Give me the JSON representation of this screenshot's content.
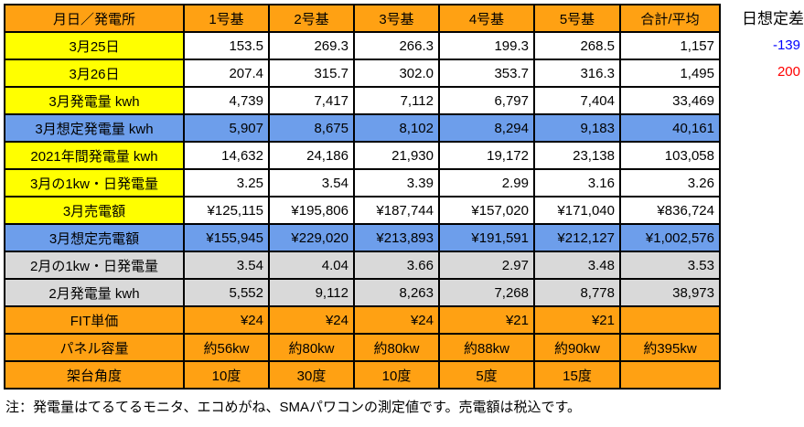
{
  "colors": {
    "orange": "#FFA113",
    "yellow": "#FFFF00",
    "blue": "#6D9EEB",
    "gray": "#D9D9D9",
    "white": "#FFFFFF",
    "border": "#000000",
    "negative": "#0000FF",
    "positive": "#FF0000"
  },
  "table": {
    "columns": [
      "月日／発電所",
      "1号基",
      "2号基",
      "3号基",
      "4号基",
      "5号基",
      "合計/平均"
    ],
    "rows": [
      {
        "label": "3月25日",
        "type": "yellow",
        "align": "right",
        "values": [
          "153.5",
          "269.3",
          "266.3",
          "199.3",
          "268.5",
          "1,157"
        ]
      },
      {
        "label": "3月26日",
        "type": "yellow",
        "align": "right",
        "values": [
          "207.4",
          "315.7",
          "302.0",
          "353.7",
          "316.3",
          "1,495"
        ]
      },
      {
        "label": "3月発電量 kwh",
        "type": "yellow",
        "align": "right",
        "values": [
          "4,739",
          "7,417",
          "7,112",
          "6,797",
          "7,404",
          "33,469"
        ]
      },
      {
        "label": "3月想定発電量 kwh",
        "type": "blue",
        "align": "right",
        "values": [
          "5,907",
          "8,675",
          "8,102",
          "8,294",
          "9,183",
          "40,161"
        ]
      },
      {
        "label": "2021年間発電量 kwh",
        "type": "yellow",
        "align": "right",
        "values": [
          "14,632",
          "24,186",
          "21,930",
          "19,172",
          "23,138",
          "103,058"
        ]
      },
      {
        "label": "3月の1kw・日発電量",
        "type": "yellow",
        "align": "right",
        "values": [
          "3.25",
          "3.54",
          "3.39",
          "2.99",
          "3.16",
          "3.26"
        ]
      },
      {
        "label": "3月売電額",
        "type": "yellow",
        "align": "right",
        "values": [
          "¥125,115",
          "¥195,806",
          "¥187,744",
          "¥157,020",
          "¥171,040",
          "¥836,724"
        ]
      },
      {
        "label": "3月想定売電額",
        "type": "blue",
        "align": "right",
        "values": [
          "¥155,945",
          "¥229,020",
          "¥213,893",
          "¥191,591",
          "¥212,127",
          "¥1,002,576"
        ]
      },
      {
        "label": "2月の1kw・日発電量",
        "type": "gray",
        "align": "right",
        "values": [
          "3.54",
          "4.04",
          "3.66",
          "2.97",
          "3.48",
          "3.53"
        ]
      },
      {
        "label": "2月発電量 kwh",
        "type": "gray",
        "align": "right",
        "values": [
          "5,552",
          "9,112",
          "8,263",
          "7,268",
          "8,778",
          "38,973"
        ]
      },
      {
        "label": "FIT単価",
        "type": "orange",
        "align": "right",
        "values": [
          "¥24",
          "¥24",
          "¥24",
          "¥21",
          "¥21",
          ""
        ]
      },
      {
        "label": "パネル容量",
        "type": "orange",
        "align": "center",
        "values": [
          "約56kw",
          "約80kw",
          "約80kw",
          "約88kw",
          "約90kw",
          "約395kw"
        ]
      },
      {
        "label": "架台角度",
        "type": "orange",
        "align": "center",
        "values": [
          "10度",
          "30度",
          "10度",
          "5度",
          "15度",
          ""
        ]
      }
    ]
  },
  "side": {
    "title": "日想定差",
    "values": [
      {
        "text": "-139",
        "color": "#0000FF"
      },
      {
        "text": "200",
        "color": "#FF0000"
      }
    ]
  },
  "footer": {
    "note": "注：発電量はてるてるモニタ、エコめがね、SMAパワコンの測定値です。売電額は税込です。"
  }
}
